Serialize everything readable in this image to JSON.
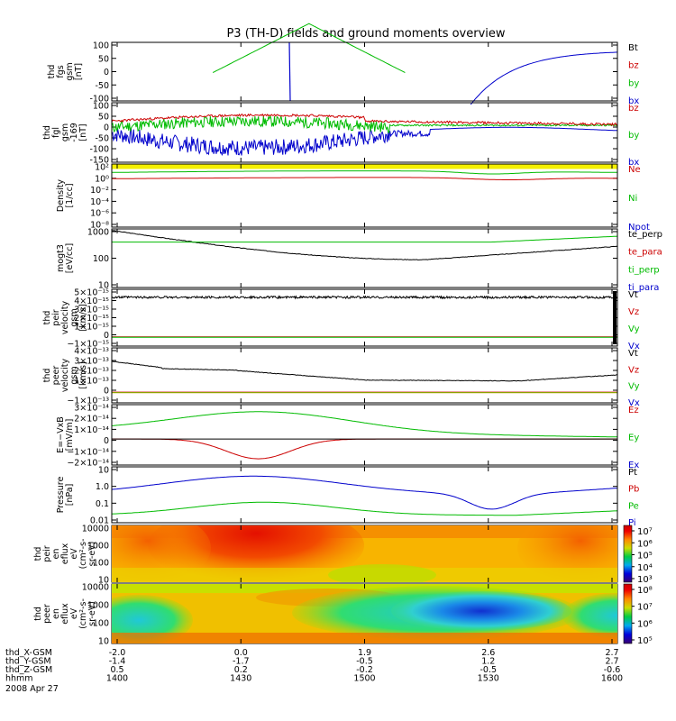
{
  "title": "P3 (TH-D) fields and ground moments overview",
  "chart_data": {
    "type": "line",
    "title": "P3 (TH-D) fields and ground moments overview",
    "x_ticks": [
      "1400",
      "1430",
      "1500",
      "1530",
      "1600"
    ],
    "ephemeris": [
      {
        "label": "thd_X-GSM",
        "values": [
          "-2.0",
          "0.0",
          "1.9",
          "2.6",
          "2.7"
        ]
      },
      {
        "label": "thd_Y-GSM",
        "values": [
          "-1.4",
          "-1.7",
          "-0.5",
          "1.2",
          "2.7"
        ]
      },
      {
        "label": "thd_Z-GSM",
        "values": [
          "0.5",
          "0.2",
          "-0.2",
          "-0.5",
          "-0.6"
        ]
      },
      {
        "label": "hhmm",
        "values": [
          "1400",
          "1430",
          "1500",
          "1530",
          "1600"
        ]
      }
    ],
    "date_label": "2008 Apr 27",
    "panels": [
      {
        "id": "fgs",
        "ylabel": [
          "thd",
          "fgs",
          "gsm",
          "[nT]"
        ],
        "yticks": [
          "100",
          "50",
          "0",
          "-50",
          "-100"
        ],
        "legend": [
          {
            "name": "Bt",
            "color": "#000000"
          },
          {
            "name": "bz",
            "color": "#cc0000"
          },
          {
            "name": "by",
            "color": "#00bb00"
          },
          {
            "name": "bx",
            "color": "#0000cc"
          }
        ]
      },
      {
        "id": "fgl",
        "ylabel": [
          "thd",
          "fgl",
          "gsm",
          "-169",
          "[nT]"
        ],
        "yticks": [
          "100",
          "50",
          "0",
          "-50",
          "-100",
          "-150"
        ],
        "legend": [
          {
            "name": "bz",
            "color": "#cc0000"
          },
          {
            "name": "by",
            "color": "#00bb00"
          },
          {
            "name": "bx",
            "color": "#0000cc"
          }
        ]
      },
      {
        "id": "density",
        "ylabel": [
          "Density",
          "[1/cc]"
        ],
        "yticks": [
          "10²",
          "10⁰",
          "10⁻²",
          "10⁻⁴",
          "10⁻⁶",
          "10⁻⁸"
        ],
        "legend": [
          {
            "name": "Ne",
            "color": "#cc0000"
          },
          {
            "name": "Ni",
            "color": "#00bb00"
          },
          {
            "name": "Npot",
            "color": "#0000cc"
          }
        ]
      },
      {
        "id": "temp",
        "ylabel": [
          "mogt3",
          "[eV/cc]"
        ],
        "yticks": [
          "1000",
          "100",
          "10"
        ],
        "legend": [
          {
            "name": "te_perp",
            "color": "#000000"
          },
          {
            "name": "te_para",
            "color": "#cc0000"
          },
          {
            "name": "ti_perp",
            "color": "#00bb00"
          },
          {
            "name": "ti_para",
            "color": "#0000cc"
          }
        ]
      },
      {
        "id": "vi",
        "ylabel": [
          "thd",
          "peir",
          "velocity",
          "gsm",
          "[km/s]"
        ],
        "yticks": [
          "5×10⁻¹⁵",
          "4×10⁻¹⁵",
          "3×10⁻¹⁵",
          "2×10⁻¹⁵",
          "1×10⁻¹⁵",
          "0",
          "−1×10⁻¹⁵"
        ],
        "legend": [
          {
            "name": "Vt",
            "color": "#000000"
          },
          {
            "name": "Vz",
            "color": "#cc0000"
          },
          {
            "name": "Vy",
            "color": "#00bb00"
          },
          {
            "name": "Vx",
            "color": "#0000cc"
          }
        ]
      },
      {
        "id": "ve",
        "ylabel": [
          "thd",
          "peer",
          "velocity",
          "gsm",
          "[km/s]"
        ],
        "yticks": [
          "4×10⁻¹³",
          "3×10⁻¹³",
          "2×10⁻¹³",
          "1×10⁻¹³",
          "0",
          "−1×10⁻¹³"
        ],
        "legend": [
          {
            "name": "Vt",
            "color": "#000000"
          },
          {
            "name": "Vz",
            "color": "#cc0000"
          },
          {
            "name": "Vy",
            "color": "#00bb00"
          },
          {
            "name": "Vx",
            "color": "#0000cc"
          }
        ]
      },
      {
        "id": "efield",
        "ylabel": [
          "E=−VxB",
          "[mV/m]"
        ],
        "yticks": [
          "3×10⁻¹⁴",
          "2×10⁻¹⁴",
          "1×10⁻¹⁴",
          "0",
          "−1×10⁻¹⁴",
          "−2×10⁻¹⁴"
        ],
        "legend": [
          {
            "name": "Ez",
            "color": "#cc0000"
          },
          {
            "name": "Ey",
            "color": "#00bb00"
          },
          {
            "name": "Ex",
            "color": "#0000cc"
          }
        ]
      },
      {
        "id": "pressure",
        "ylabel": [
          "Pressure",
          "[nPa]"
        ],
        "yticks": [
          "10",
          "1.0",
          "0.1",
          "0.01"
        ],
        "legend": [
          {
            "name": "Pt",
            "color": "#000000"
          },
          {
            "name": "Pb",
            "color": "#cc0000"
          },
          {
            "name": "Pe",
            "color": "#00bb00"
          },
          {
            "name": "Pi",
            "color": "#0000cc"
          }
        ]
      },
      {
        "id": "ion_spec",
        "ylabel": [
          "thd",
          "peir",
          "en",
          "eflux",
          "eV",
          "(cm²-s-",
          "sr-eV)"
        ],
        "yticks": [
          "10000",
          "1000",
          "100",
          "10"
        ],
        "colorbar_ticks": [
          "10⁷",
          "10⁶",
          "10⁵",
          "10⁴",
          "10³"
        ]
      },
      {
        "id": "ele_spec",
        "ylabel": [
          "thd",
          "peer",
          "en",
          "eflux",
          "eV",
          "(cm²-s-",
          "sr-eV)"
        ],
        "yticks": [
          "10000",
          "1000",
          "100",
          "10"
        ],
        "colorbar_ticks": [
          "10⁸",
          "10⁷",
          "10⁶",
          "10⁵"
        ]
      }
    ]
  }
}
